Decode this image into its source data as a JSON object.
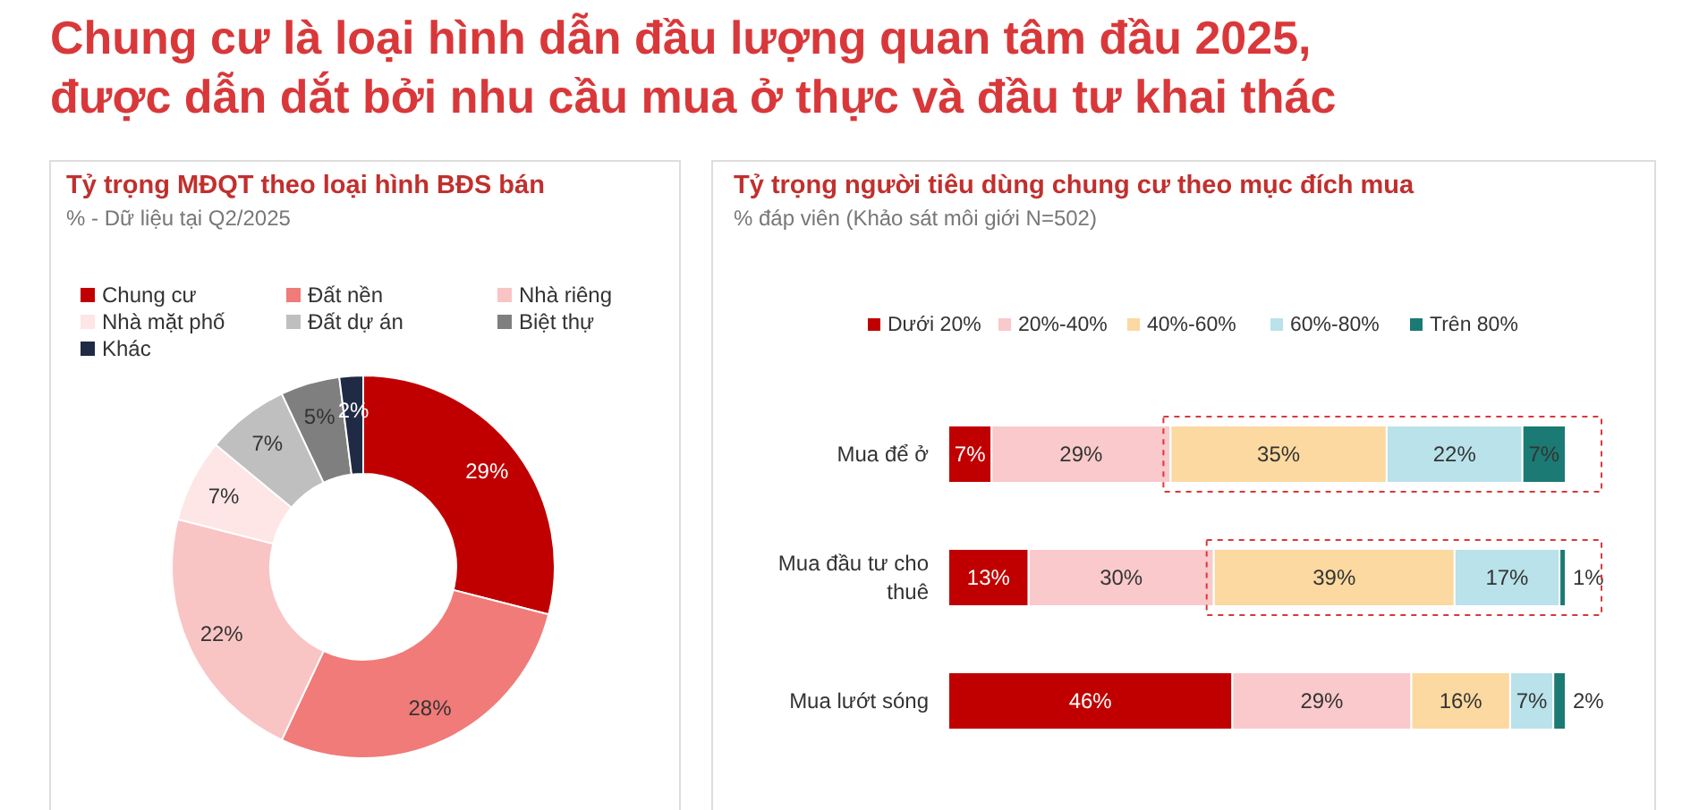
{
  "chart_data": [
    {
      "type": "other",
      "title": "Chung cư là loại hình dẫn đầu lượng quan tâm đầu 2025,\nđược dẫn dắt bởi nhu cầu mua ở thực và đầu tư khai thác"
    },
    {
      "type": "donut",
      "title": "Tỷ trọng MĐQT theo loại hình BĐS bán",
      "subtitle": "% - Dữ liệu tại Q2/2025",
      "categories": [
        "Chung cư",
        "Đất nền",
        "Nhà riêng",
        "Nhà mặt phố",
        "Đất dự án",
        "Biệt thự",
        "Khác"
      ],
      "values": [
        29,
        28,
        22,
        7,
        7,
        5,
        2
      ],
      "colors": [
        "#c00000",
        "#f07b78",
        "#f9c5c4",
        "#fde6e5",
        "#bfbfbf",
        "#7f7f7f",
        "#1f2a44"
      ],
      "value_labels": [
        "29%",
        "28%",
        "22%",
        "7%",
        "7%",
        "5%",
        "2%"
      ],
      "legend": "top left"
    },
    {
      "type": "bar",
      "orientation": "horizontal",
      "stacked": true,
      "title": "Tỷ trọng người tiêu dùng chung cư theo mục đích mua",
      "subtitle": "% đáp viên (Khảo sát môi giới N=502)",
      "categories": [
        "Mua để ở",
        "Mua đầu tư cho thuê",
        "Mua lướt sóng"
      ],
      "legend": "top",
      "series": [
        {
          "name": "Dưới 20%",
          "color": "#c00000",
          "values": [
            7,
            13,
            46
          ],
          "value_labels": [
            "7%",
            "13%",
            "46%"
          ]
        },
        {
          "name": "20%-40%",
          "color": "#f9c9cb",
          "values": [
            29,
            30,
            29
          ],
          "value_labels": [
            "29%",
            "30%",
            "29%"
          ]
        },
        {
          "name": "40%-60%",
          "color": "#fbd9a0",
          "values": [
            35,
            39,
            16
          ],
          "value_labels": [
            "35%",
            "39%",
            "16%"
          ]
        },
        {
          "name": "60%-80%",
          "color": "#b9e2ea",
          "values": [
            22,
            17,
            7
          ],
          "value_labels": [
            "22%",
            "17%",
            "7%"
          ]
        },
        {
          "name": "Trên 80%",
          "color": "#1b7a73",
          "values": [
            7,
            1,
            2
          ],
          "value_labels": [
            "7%",
            "1%",
            "2%"
          ]
        }
      ]
    }
  ]
}
